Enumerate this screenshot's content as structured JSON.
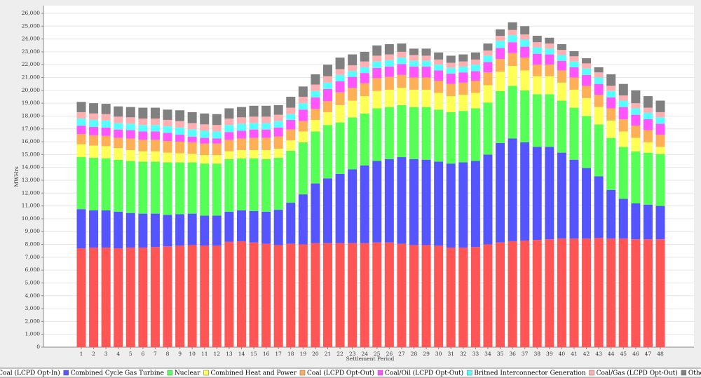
{
  "chart_data": {
    "type": "stacked_bar",
    "x_label": "Settlement Period",
    "y_label": "MWHrs",
    "categories": [
      "1",
      "2",
      "3",
      "4",
      "5",
      "6",
      "7",
      "8",
      "9",
      "10",
      "11",
      "12",
      "13",
      "14",
      "15",
      "16",
      "17",
      "18",
      "19",
      "20",
      "21",
      "22",
      "23",
      "24",
      "25",
      "26",
      "27",
      "28",
      "29",
      "30",
      "31",
      "32",
      "33",
      "34",
      "35",
      "36",
      "37",
      "38",
      "39",
      "40",
      "41",
      "42",
      "43",
      "44",
      "45",
      "46",
      "47",
      "48"
    ],
    "ylim": [
      0,
      26600
    ],
    "yticks": [
      0,
      {
        "value": 1000,
        "label": "1,000"
      },
      {
        "value": 2000,
        "label": "2,000"
      },
      {
        "value": 3000,
        "label": "3,000"
      },
      {
        "value": 4000,
        "label": "4,000"
      },
      {
        "value": 5000,
        "label": "5,000"
      },
      {
        "value": 6000,
        "label": "6,000"
      },
      {
        "value": 7000,
        "label": "7,000"
      },
      {
        "value": 8000,
        "label": "8,000"
      },
      {
        "value": 9000,
        "label": "9,000"
      },
      {
        "value": 10000,
        "label": "10,000"
      },
      {
        "value": 11000,
        "label": "11,000"
      },
      {
        "value": 12000,
        "label": "12,000"
      },
      {
        "value": 13000,
        "label": "13,000"
      },
      {
        "value": 14000,
        "label": "14,000"
      },
      {
        "value": 15000,
        "label": "15,000"
      },
      {
        "value": 16000,
        "label": "16,000"
      },
      {
        "value": 17000,
        "label": "17,000"
      },
      {
        "value": 18000,
        "label": "18,000"
      },
      {
        "value": 19000,
        "label": "19,000"
      },
      {
        "value": 20000,
        "label": "20,000"
      },
      {
        "value": 21000,
        "label": "21,000"
      },
      {
        "value": 22000,
        "label": "22,000"
      },
      {
        "value": 23000,
        "label": "23,000"
      },
      {
        "value": 24000,
        "label": "24,000"
      },
      {
        "value": 25000,
        "label": "25,000"
      },
      {
        "value": 26000,
        "label": "26,000"
      }
    ],
    "grid": true,
    "series": [
      {
        "name": "Coal (LCPD Opt-In)",
        "color": "#ff5555",
        "values": [
          7700,
          7750,
          7750,
          7700,
          7750,
          7750,
          7800,
          7850,
          7900,
          7950,
          7900,
          7900,
          8200,
          8250,
          8150,
          8050,
          7950,
          8050,
          8000,
          8100,
          8100,
          8100,
          8100,
          8100,
          8150,
          8150,
          8050,
          7950,
          7950,
          7900,
          7750,
          7750,
          7800,
          8000,
          8150,
          8250,
          8300,
          8350,
          8400,
          8450,
          8450,
          8450,
          8500,
          8450,
          8450,
          8400,
          8400,
          8400
        ]
      },
      {
        "name": "Combined Cycle Gas Turbine",
        "color": "#5555ff",
        "values": [
          3050,
          2900,
          2900,
          2850,
          2700,
          2650,
          2600,
          2450,
          2450,
          2450,
          2350,
          2350,
          2350,
          2400,
          2450,
          2500,
          2750,
          3200,
          3900,
          4650,
          5050,
          5400,
          5750,
          6050,
          6350,
          6500,
          6750,
          6700,
          6650,
          6550,
          6550,
          6650,
          6700,
          7000,
          7750,
          8000,
          7650,
          7250,
          7200,
          6700,
          6150,
          5500,
          4800,
          3800,
          3100,
          2800,
          2700,
          2600
        ]
      },
      {
        "name": "Nuclear",
        "color": "#55ff55",
        "values": [
          4050,
          4100,
          4050,
          4050,
          4050,
          4050,
          4050,
          4100,
          4050,
          4000,
          4050,
          4050,
          4100,
          4050,
          4100,
          4100,
          4050,
          4050,
          4050,
          4050,
          4150,
          4000,
          4050,
          4050,
          4100,
          4050,
          4050,
          4050,
          4100,
          4050,
          4000,
          4000,
          4100,
          4050,
          4050,
          4100,
          4050,
          4100,
          4100,
          4050,
          4050,
          4050,
          4050,
          4050,
          4050,
          4050,
          4050,
          4050
        ]
      },
      {
        "name": "Combined Heat and Power",
        "color": "#ffff55",
        "values": [
          1000,
          950,
          950,
          900,
          850,
          800,
          800,
          750,
          700,
          650,
          650,
          650,
          600,
          650,
          650,
          700,
          700,
          800,
          850,
          900,
          1000,
          1350,
          1300,
          1350,
          1350,
          1350,
          1350,
          1350,
          1350,
          1300,
          1250,
          1250,
          1200,
          1350,
          1500,
          1550,
          1550,
          1400,
          1400,
          1400,
          1400,
          1400,
          1350,
          1350,
          1200,
          1050,
          800,
          550
        ]
      },
      {
        "name": "Coal (LCPD Opt-Out)",
        "color": "#ffaf55",
        "values": [
          800,
          800,
          800,
          800,
          900,
          900,
          900,
          900,
          900,
          900,
          900,
          900,
          900,
          900,
          950,
          950,
          950,
          850,
          800,
          850,
          850,
          1000,
          1000,
          1000,
          1000,
          1000,
          1000,
          950,
          950,
          950,
          950,
          950,
          950,
          1000,
          1000,
          1000,
          1000,
          900,
          900,
          950,
          950,
          950,
          950,
          950,
          950,
          950,
          950,
          950
        ]
      },
      {
        "name": "Coal/Oil (LCPD Opt-Out)",
        "color": "#ff55ff",
        "values": [
          650,
          650,
          650,
          650,
          650,
          650,
          650,
          650,
          550,
          450,
          450,
          400,
          600,
          600,
          650,
          650,
          700,
          750,
          900,
          900,
          950,
          850,
          850,
          800,
          800,
          800,
          850,
          850,
          850,
          800,
          800,
          800,
          750,
          800,
          850,
          850,
          850,
          850,
          800,
          750,
          800,
          850,
          850,
          850,
          950,
          850,
          850,
          850
        ]
      },
      {
        "name": "Britned Interconnector Generation",
        "color": "#55ffff",
        "values": [
          550,
          550,
          550,
          500,
          500,
          500,
          500,
          500,
          550,
          550,
          550,
          550,
          550,
          550,
          500,
          500,
          500,
          450,
          500,
          500,
          500,
          500,
          450,
          450,
          500,
          500,
          500,
          450,
          450,
          450,
          450,
          450,
          500,
          500,
          550,
          550,
          550,
          500,
          450,
          450,
          450,
          500,
          500,
          500,
          500,
          500,
          500,
          500
        ]
      },
      {
        "name": "Coal/Gas (LCPD Opt-Out)",
        "color": "#ffafaf",
        "values": [
          500,
          500,
          500,
          500,
          500,
          500,
          500,
          500,
          500,
          500,
          500,
          500,
          500,
          500,
          500,
          500,
          500,
          500,
          500,
          500,
          500,
          450,
          450,
          450,
          450,
          450,
          450,
          450,
          400,
          400,
          400,
          400,
          400,
          400,
          400,
          400,
          400,
          400,
          400,
          400,
          400,
          400,
          400,
          400,
          400,
          400,
          400,
          400
        ]
      },
      {
        "name": "Others",
        "color": "#808080",
        "values": [
          800,
          800,
          800,
          800,
          800,
          850,
          850,
          800,
          850,
          850,
          850,
          850,
          800,
          800,
          850,
          850,
          750,
          850,
          800,
          800,
          900,
          900,
          850,
          750,
          800,
          800,
          650,
          500,
          550,
          550,
          550,
          550,
          550,
          550,
          500,
          600,
          650,
          500,
          450,
          450,
          400,
          400,
          400,
          900,
          900,
          1000,
          900,
          900
        ]
      }
    ]
  }
}
